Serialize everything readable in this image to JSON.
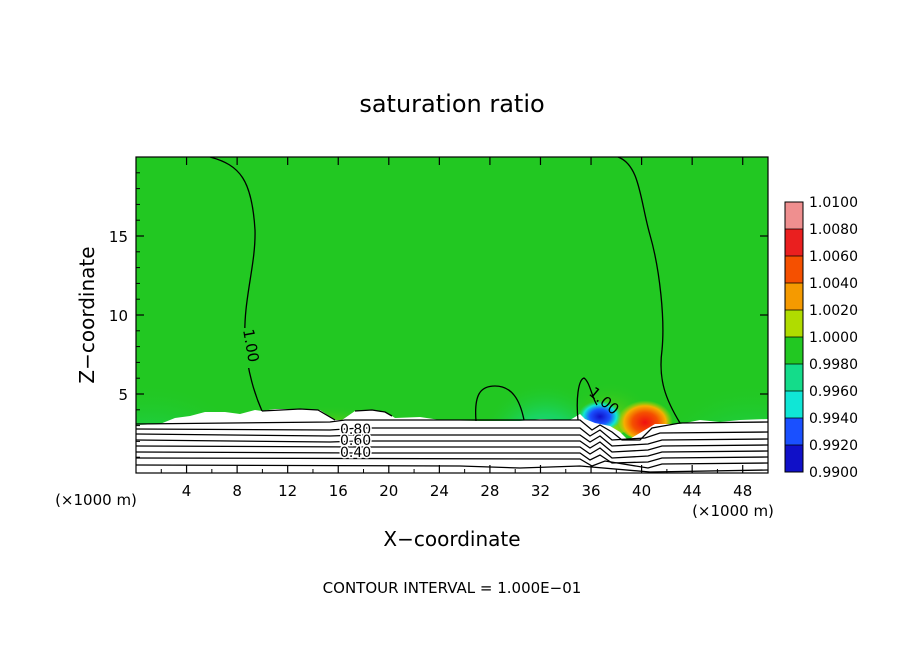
{
  "chart_data": {
    "type": "heatmap",
    "title": "saturation ratio",
    "xlabel": "X−coordinate",
    "ylabel": "Z−coordinate",
    "x_unit_label": "(×1000 m)",
    "x_unit_label_right": "(×1000 m)",
    "footer": "CONTOUR INTERVAL = 1.000E−01",
    "xlim": [
      0,
      50
    ],
    "ylim": [
      0,
      20
    ],
    "x_ticks": [
      "4",
      "8",
      "12",
      "16",
      "20",
      "24",
      "28",
      "32",
      "36",
      "40",
      "44",
      "48"
    ],
    "y_ticks": [
      "5",
      "10",
      "15"
    ],
    "colorbar": {
      "labels": [
        "1.0100",
        "1.0080",
        "1.0060",
        "1.0040",
        "1.0020",
        "1.0000",
        "0.9980",
        "0.9960",
        "0.9940",
        "0.9920",
        "0.9900"
      ],
      "colors": [
        "#ef8f8f",
        "#ea1f1f",
        "#f55000",
        "#f59a00",
        "#b0dc00",
        "#22c822",
        "#14dc8a",
        "#10e6d6",
        "#1a50ff",
        "#1010c8",
        "#5a1090"
      ]
    },
    "contour_labels": [
      "1.00",
      "1.00",
      "0.80",
      "0.60",
      "0.40"
    ],
    "cloud_base_km": 3.3,
    "saturated_value": 1.0,
    "supersaturation_peak": {
      "x": 40,
      "z": 3.5,
      "value": 1.008
    },
    "subsaturation_trough": {
      "x": 36,
      "z": 3.5,
      "value": 0.994
    }
  }
}
